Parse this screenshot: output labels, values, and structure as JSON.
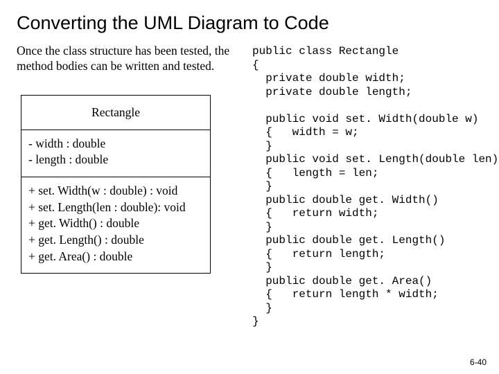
{
  "title": "Converting the UML Diagram to Code",
  "intro": "Once the class structure has been tested, the method bodies can be written and tested.",
  "uml": {
    "class_name": "Rectangle",
    "attributes": [
      "- width : double",
      "- length : double"
    ],
    "methods": [
      "+ set. Width(w : double) : void",
      "+ set. Length(len : double): void",
      "+ get. Width() : double",
      "+ get. Length() : double",
      "+ get. Area() : double"
    ]
  },
  "code": {
    "font_family": "Courier New",
    "font_size_pt": 12,
    "color": "#000000",
    "lines": [
      "public class Rectangle",
      "{",
      "  private double width;",
      "  private double length;",
      "",
      "  public void set. Width(double w)",
      "  {   width = w;",
      "  }",
      "  public void set. Length(double len)",
      "  {   length = len;",
      "  }",
      "  public double get. Width()",
      "  {   return width;",
      "  }",
      "  public double get. Length()",
      "  {   return length;",
      "  }",
      "  public double get. Area()",
      "  {   return length * width;",
      "  }",
      "}"
    ]
  },
  "slide_number": "6-40",
  "colors": {
    "background": "#ffffff",
    "text": "#000000",
    "border": "#000000"
  },
  "typography": {
    "title_font": "Arial",
    "title_size_pt": 20,
    "body_font": "Times New Roman",
    "body_size_pt": 13,
    "code_font": "Courier New",
    "code_size_pt": 12
  }
}
